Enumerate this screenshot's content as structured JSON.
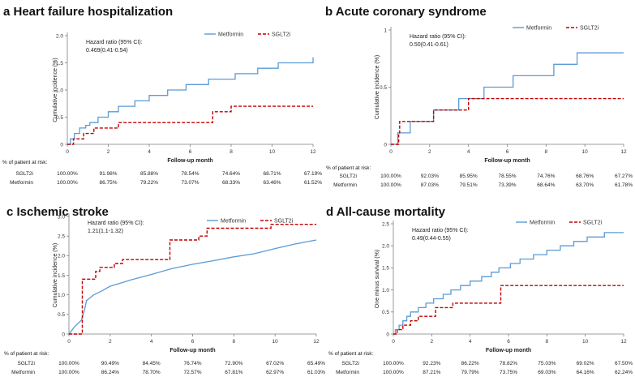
{
  "colors": {
    "metformin": "#5b9bd5",
    "sglt2i": "#c00000",
    "axis": "#7f7f7f"
  },
  "chart_data": [
    {
      "type": "line",
      "letter": "a",
      "title": "Heart failure hospitalization",
      "ylabel": "Cumulative incidence (%)",
      "xlabel": "Follow-up month",
      "xlim": [
        0,
        12
      ],
      "ylim": [
        0,
        2.0
      ],
      "xticks": [
        0,
        2,
        4,
        6,
        8,
        10,
        12
      ],
      "yticks": [
        0,
        0.5,
        1.0,
        1.5,
        2.0
      ],
      "ytick_labels": [
        "0",
        "0.5",
        "1.0",
        "1.5",
        "2.0"
      ],
      "annotation": [
        "Hazard ratio (95% CI):",
        "0.469(0.41-0.54)"
      ],
      "series": [
        {
          "name": "Metformin",
          "style": "step",
          "points": [
            [
              0,
              0
            ],
            [
              0.15,
              0.1
            ],
            [
              0.35,
              0.2
            ],
            [
              0.6,
              0.3
            ],
            [
              0.9,
              0.35
            ],
            [
              1.1,
              0.4
            ],
            [
              1.5,
              0.5
            ],
            [
              2.0,
              0.6
            ],
            [
              2.5,
              0.7
            ],
            [
              3.3,
              0.8
            ],
            [
              4.0,
              0.9
            ],
            [
              4.9,
              1.0
            ],
            [
              5.8,
              1.1
            ],
            [
              6.9,
              1.2
            ],
            [
              8.2,
              1.3
            ],
            [
              9.3,
              1.4
            ],
            [
              10.3,
              1.5
            ],
            [
              12,
              1.6
            ]
          ]
        },
        {
          "name": "SGLT2i",
          "style": "step",
          "points": [
            [
              0,
              0
            ],
            [
              0.3,
              0.1
            ],
            [
              0.8,
              0.2
            ],
            [
              1.3,
              0.3
            ],
            [
              2.5,
              0.4
            ],
            [
              7.1,
              0.6
            ],
            [
              8.0,
              0.7
            ],
            [
              12,
              0.7
            ]
          ]
        }
      ],
      "risk_table": {
        "header": "% of patient at risk:",
        "rows": [
          {
            "name": "SGLT2i",
            "values": [
              "100.00%",
              "91.98%",
              "85.88%",
              "78.54%",
              "74.64%",
              "68.71%",
              "67.19%"
            ]
          },
          {
            "name": "Metformin",
            "values": [
              "100.00%",
              "86.75%",
              "79.22%",
              "73.07%",
              "68.33%",
              "63.46%",
              "61.52%"
            ]
          }
        ]
      }
    },
    {
      "type": "line",
      "letter": "b",
      "title": "Acute coronary syndrome",
      "ylabel": "Cumulative incidence (%)",
      "xlabel": "Follow-up month",
      "xlim": [
        0,
        12
      ],
      "ylim": [
        0,
        1.0
      ],
      "xticks": [
        0,
        2,
        4,
        6,
        8,
        10,
        12
      ],
      "yticks": [
        0,
        0.5,
        1.0
      ],
      "ytick_labels": [
        "0",
        "0.5",
        "1"
      ],
      "annotation": [
        "Hazard ratio (95% CI):",
        "0.50(0.41-0.61)"
      ],
      "series": [
        {
          "name": "Metformin",
          "style": "step",
          "points": [
            [
              0,
              0
            ],
            [
              0.35,
              0.1
            ],
            [
              1.0,
              0.2
            ],
            [
              2.2,
              0.3
            ],
            [
              3.5,
              0.4
            ],
            [
              4.8,
              0.5
            ],
            [
              6.3,
              0.6
            ],
            [
              8.4,
              0.7
            ],
            [
              9.6,
              0.8
            ],
            [
              12,
              0.8
            ]
          ]
        },
        {
          "name": "SGLT2i",
          "style": "step",
          "points": [
            [
              0,
              0
            ],
            [
              0.4,
              0.1
            ],
            [
              0.45,
              0.2
            ],
            [
              2.2,
              0.3
            ],
            [
              4.0,
              0.4
            ],
            [
              12,
              0.4
            ]
          ]
        }
      ],
      "risk_table": {
        "header": "% of patient at risk:",
        "rows": [
          {
            "name": "SGLT2i",
            "values": [
              "100.00%",
              "92.03%",
              "85.95%",
              "78.55%",
              "74.76%",
              "68.76%",
              "67.27%"
            ]
          },
          {
            "name": "Metformin",
            "values": [
              "100.00%",
              "87.03%",
              "79.51%",
              "73.39%",
              "68.64%",
              "63.70%",
              "61.78%"
            ]
          }
        ]
      }
    },
    {
      "type": "line",
      "letter": "c",
      "title": "Ischemic stroke",
      "ylabel": "Cumulative incidence (%)",
      "xlabel": "Follow-up month",
      "xlim": [
        0,
        12
      ],
      "ylim": [
        0,
        3.0
      ],
      "xticks": [
        0,
        2,
        4,
        6,
        8,
        10,
        12
      ],
      "yticks": [
        0,
        0.5,
        1.0,
        1.5,
        2.0,
        2.5,
        3.0
      ],
      "ytick_labels": [
        "0",
        "0.5",
        "1.0",
        "1.5",
        "2.0",
        "2.5",
        "3.0"
      ],
      "annotation": [
        "Hazard ratio (95% CI):",
        "1.21(1.1-1.32)"
      ],
      "series": [
        {
          "name": "Metformin",
          "style": "curve",
          "points": [
            [
              0,
              0
            ],
            [
              0.3,
              0.2
            ],
            [
              0.6,
              0.35
            ],
            [
              0.75,
              0.6
            ],
            [
              0.85,
              0.85
            ],
            [
              1.2,
              1.0
            ],
            [
              1.6,
              1.1
            ],
            [
              2.0,
              1.22
            ],
            [
              2.5,
              1.3
            ],
            [
              3.0,
              1.38
            ],
            [
              4.0,
              1.52
            ],
            [
              5.0,
              1.67
            ],
            [
              6.0,
              1.78
            ],
            [
              7.0,
              1.87
            ],
            [
              8.0,
              1.97
            ],
            [
              9.0,
              2.05
            ],
            [
              10.0,
              2.18
            ],
            [
              11.0,
              2.3
            ],
            [
              12,
              2.4
            ]
          ]
        },
        {
          "name": "SGLT2i",
          "style": "step",
          "points": [
            [
              0,
              0
            ],
            [
              0.65,
              1.4
            ],
            [
              1.3,
              1.6
            ],
            [
              1.5,
              1.7
            ],
            [
              2.2,
              1.8
            ],
            [
              2.6,
              1.9
            ],
            [
              4.9,
              2.4
            ],
            [
              6.3,
              2.5
            ],
            [
              6.7,
              2.7
            ],
            [
              9.8,
              2.8
            ],
            [
              12,
              2.8
            ]
          ]
        }
      ],
      "risk_table": {
        "header": "% of patient at risk:",
        "rows": [
          {
            "name": "SGLT2i",
            "values": [
              "100.00%",
              "90.49%",
              "84.45%",
              "76.74%",
              "72.90%",
              "67.02%",
              "65.49%"
            ]
          },
          {
            "name": "Metformin",
            "values": [
              "100.00%",
              "86.24%",
              "78.70%",
              "72.57%",
              "67.81%",
              "62.97%",
              "61.03%"
            ]
          }
        ]
      }
    },
    {
      "type": "line",
      "letter": "d",
      "title": "All-cause mortality",
      "ylabel": "One minus survival (%)",
      "xlabel": "Follow-up month",
      "xlim": [
        0,
        12
      ],
      "ylim": [
        0,
        2.5
      ],
      "xticks": [
        0,
        2,
        4,
        6,
        8,
        10,
        12
      ],
      "yticks": [
        0,
        0.5,
        1.0,
        1.5,
        2.0,
        2.5
      ],
      "ytick_labels": [
        "0",
        "0.5",
        "1.0",
        "1.5",
        "2.0",
        "2.5"
      ],
      "annotation": [
        "Hazard ratio (95% CI):",
        "0.49(0.44-0.55)"
      ],
      "series": [
        {
          "name": "Metformin",
          "style": "step",
          "points": [
            [
              0,
              0
            ],
            [
              0.1,
              0.1
            ],
            [
              0.3,
              0.2
            ],
            [
              0.5,
              0.3
            ],
            [
              0.7,
              0.4
            ],
            [
              0.9,
              0.5
            ],
            [
              1.3,
              0.6
            ],
            [
              1.7,
              0.7
            ],
            [
              2.1,
              0.8
            ],
            [
              2.6,
              0.9
            ],
            [
              3.0,
              1.0
            ],
            [
              3.5,
              1.1
            ],
            [
              4.0,
              1.2
            ],
            [
              4.6,
              1.3
            ],
            [
              5.1,
              1.4
            ],
            [
              5.5,
              1.5
            ],
            [
              6.1,
              1.6
            ],
            [
              6.6,
              1.7
            ],
            [
              7.3,
              1.8
            ],
            [
              8.0,
              1.9
            ],
            [
              8.7,
              2.0
            ],
            [
              9.4,
              2.1
            ],
            [
              10.1,
              2.2
            ],
            [
              11.0,
              2.3
            ],
            [
              12,
              2.3
            ]
          ]
        },
        {
          "name": "SGLT2i",
          "style": "step",
          "points": [
            [
              0,
              0
            ],
            [
              0.2,
              0.1
            ],
            [
              0.5,
              0.2
            ],
            [
              0.9,
              0.3
            ],
            [
              1.3,
              0.4
            ],
            [
              2.2,
              0.6
            ],
            [
              3.1,
              0.7
            ],
            [
              5.6,
              1.1
            ],
            [
              12,
              1.1
            ]
          ]
        }
      ],
      "risk_table": {
        "header": "% of patient at risk:",
        "rows": [
          {
            "name": "SGLT2i",
            "values": [
              "100.00%",
              "92.23%",
              "86.22%",
              "78.82%",
              "75.03%",
              "69.02%",
              "67.50%"
            ]
          },
          {
            "name": "Metformin",
            "values": [
              "100.00%",
              "87.21%",
              "79.79%",
              "73.75%",
              "69.03%",
              "64.16%",
              "62.24%"
            ]
          }
        ]
      }
    }
  ]
}
